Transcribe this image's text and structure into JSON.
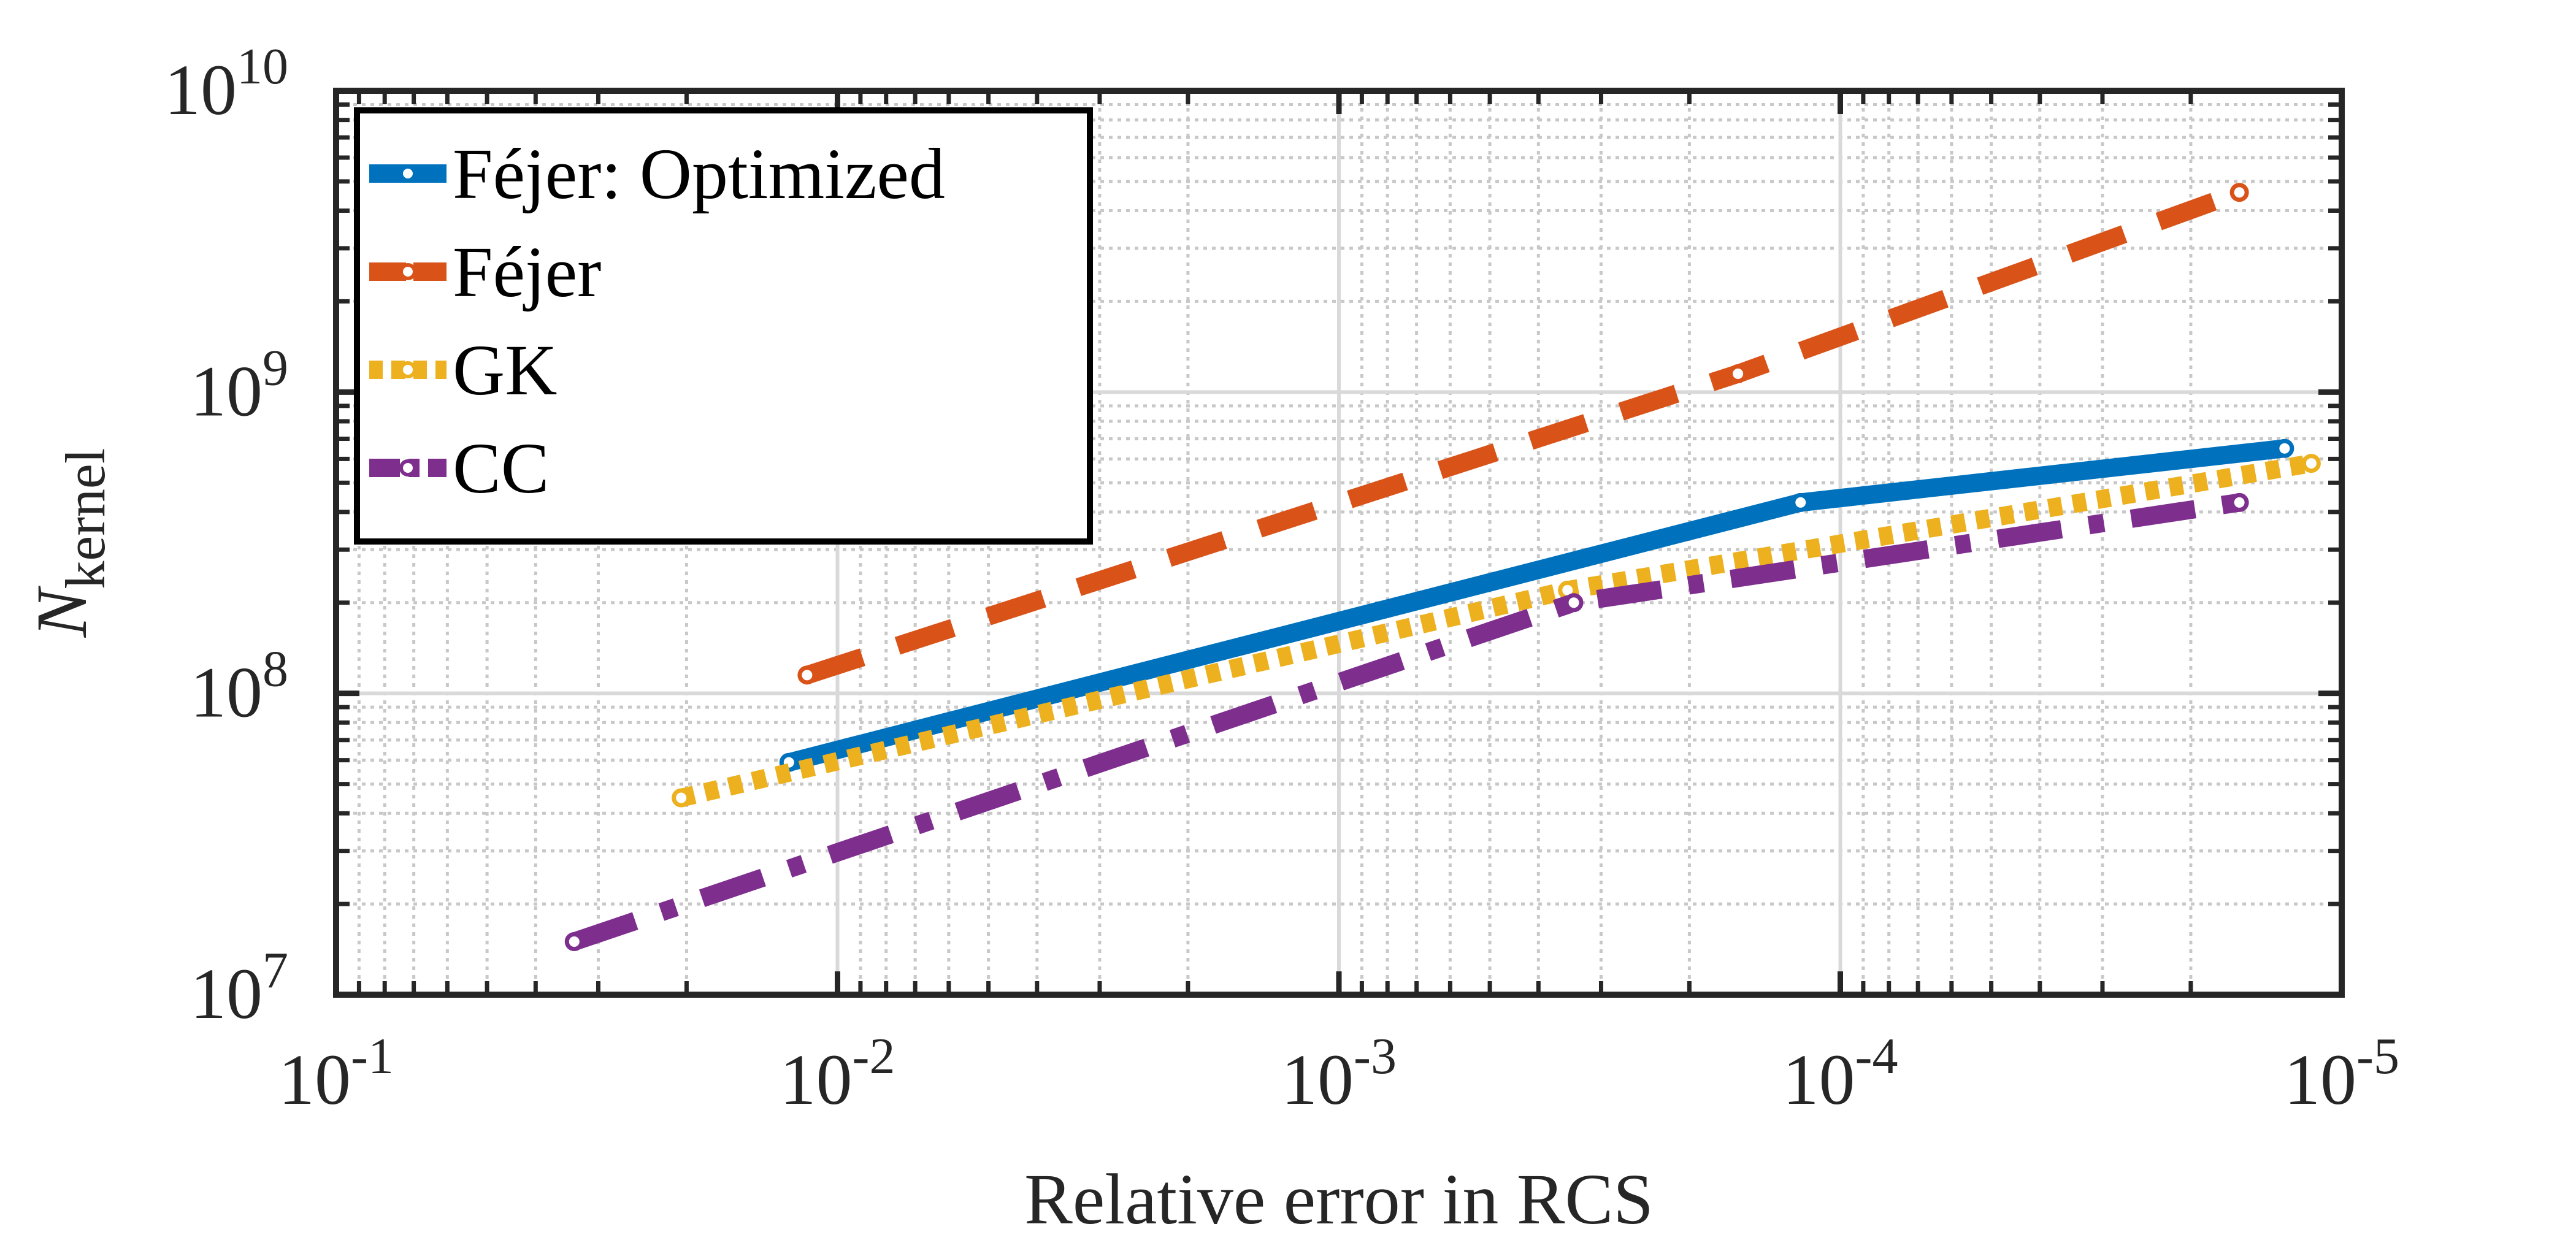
{
  "chart_data": {
    "type": "line",
    "title": "",
    "xlabel": "Relative error in RCS",
    "ylabel": {
      "base": "N",
      "subscript": "kernel"
    },
    "xscale": "log",
    "yscale": "log",
    "x_reversed": true,
    "xlim": [
      0.1,
      1e-05
    ],
    "ylim": [
      10000000,
      10000000000
    ],
    "grid": true,
    "minor_grid": true,
    "legend_position": "top-left",
    "x_ticks": [
      {
        "value": 0.1,
        "base": "10",
        "exp": "-1"
      },
      {
        "value": 0.01,
        "base": "10",
        "exp": "-2"
      },
      {
        "value": 0.001,
        "base": "10",
        "exp": "-3"
      },
      {
        "value": 0.0001,
        "base": "10",
        "exp": "-4"
      },
      {
        "value": 1e-05,
        "base": "10",
        "exp": "-5"
      }
    ],
    "y_ticks": [
      {
        "value": 10000000,
        "base": "10",
        "exp": "7"
      },
      {
        "value": 100000000,
        "base": "10",
        "exp": "8"
      },
      {
        "value": 1000000000,
        "base": "10",
        "exp": "9"
      },
      {
        "value": 10000000000,
        "base": "10",
        "exp": "10"
      }
    ],
    "series": [
      {
        "name": "Féjer: Optimized",
        "color": "#0072BD",
        "style": "solid",
        "x": [
          0.0125,
          0.00012,
          1.3e-05
        ],
        "y": [
          59000000,
          430000000,
          650000000
        ]
      },
      {
        "name": "Féjer",
        "color": "#D95319",
        "style": "dashed",
        "x": [
          0.0115,
          0.00016,
          1.6e-05
        ],
        "y": [
          115000000,
          1150000000,
          4600000000
        ]
      },
      {
        "name": "GK",
        "color": "#EDB120",
        "style": "dotted",
        "x": [
          0.0205,
          0.00035,
          1.15e-05
        ],
        "y": [
          45000000,
          220000000,
          580000000
        ]
      },
      {
        "name": "CC",
        "color": "#7E2F8E",
        "style": "dashdot",
        "x": [
          0.0335,
          0.00034,
          1.6e-05
        ],
        "y": [
          15000000,
          200000000,
          430000000
        ]
      }
    ]
  }
}
